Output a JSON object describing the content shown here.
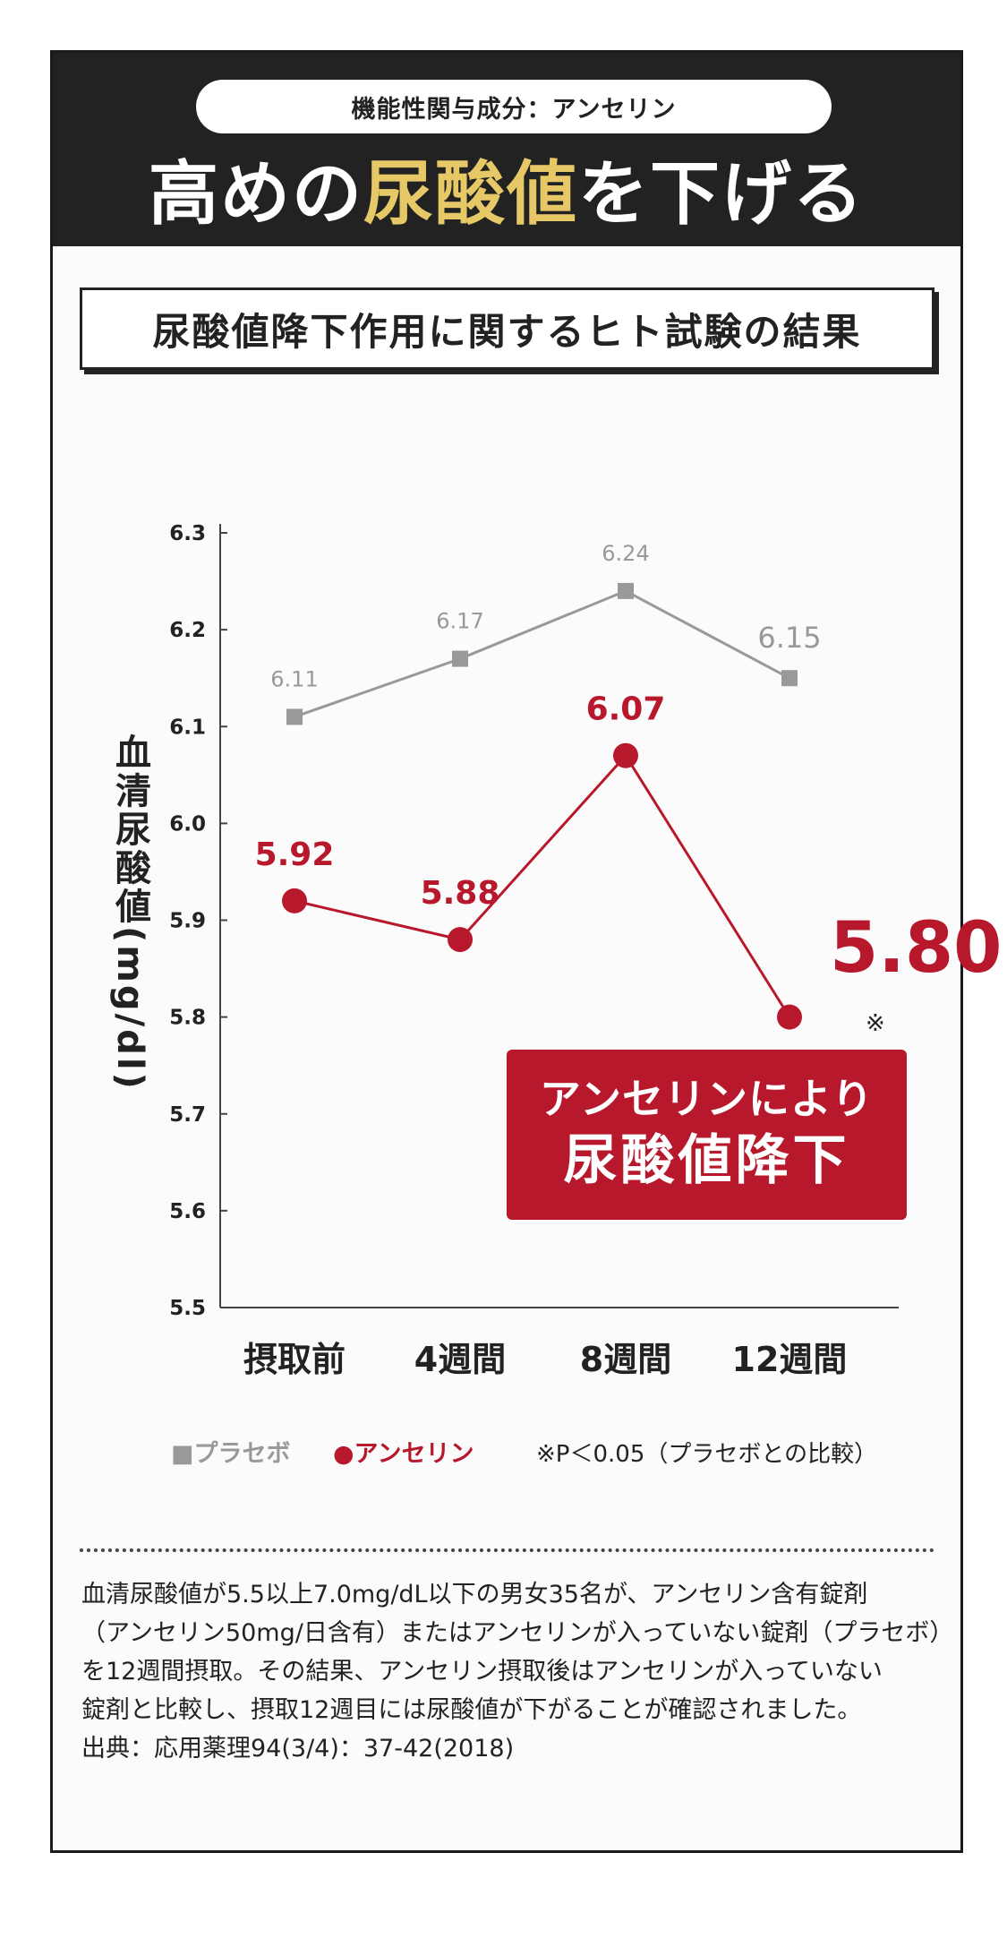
{
  "header": {
    "pill_text": "機能性関与成分：アンセリン",
    "title_pre": "高めの",
    "title_highlight": "尿酸値",
    "title_post": "を下げる"
  },
  "banner": {
    "text": "尿酸値降下作用に関するヒト試験の結果"
  },
  "callout": {
    "line1": "アンセリンにより",
    "line2": "尿酸値降下"
  },
  "significance_mark": "※",
  "legend": {
    "placebo": "■プラセボ",
    "anserine": "●アンセリン",
    "note": "※P＜0.05（プラセボとの比較）"
  },
  "description": {
    "lines": [
      "血清尿酸値が5.5以上7.0mg/dL以下の男女35名が、アンセリン含有錠剤",
      "（アンセリン50mg/日含有）またはアンセリンが入っていない錠剤（プラセボ）",
      "を12週間摂取。その結果、アンセリン摂取後はアンセリンが入っていない",
      "錠剤と比較し、摂取12週目には尿酸値が下がることが確認されました。",
      "出典：応用薬理94(3/4)：37-42(2018)"
    ]
  },
  "colors": {
    "placebo": "#999999",
    "anserine": "#b8182b",
    "highlight": "#e7c866"
  },
  "chart_data": {
    "type": "line",
    "categories": [
      "摂取前",
      "4週間",
      "8週間",
      "12週間"
    ],
    "series": [
      {
        "name": "プラセボ",
        "marker": "square",
        "values": [
          6.11,
          6.17,
          6.24,
          6.15
        ],
        "labels": [
          "6.11",
          "6.17",
          "6.24",
          "6.15"
        ]
      },
      {
        "name": "アンセリン",
        "marker": "circle",
        "values": [
          5.92,
          5.88,
          6.07,
          5.8
        ],
        "labels": [
          "5.92",
          "5.88",
          "6.07",
          "5.80"
        ]
      }
    ],
    "ylabel": "血清尿酸値(mg/dl)",
    "ylim": [
      5.5,
      6.3
    ],
    "yticks": [
      "6.3",
      "6.2",
      "6.1",
      "6.0",
      "5.9",
      "5.8",
      "5.7",
      "5.6",
      "5.5"
    ],
    "grid": false,
    "legend": "bottom"
  }
}
